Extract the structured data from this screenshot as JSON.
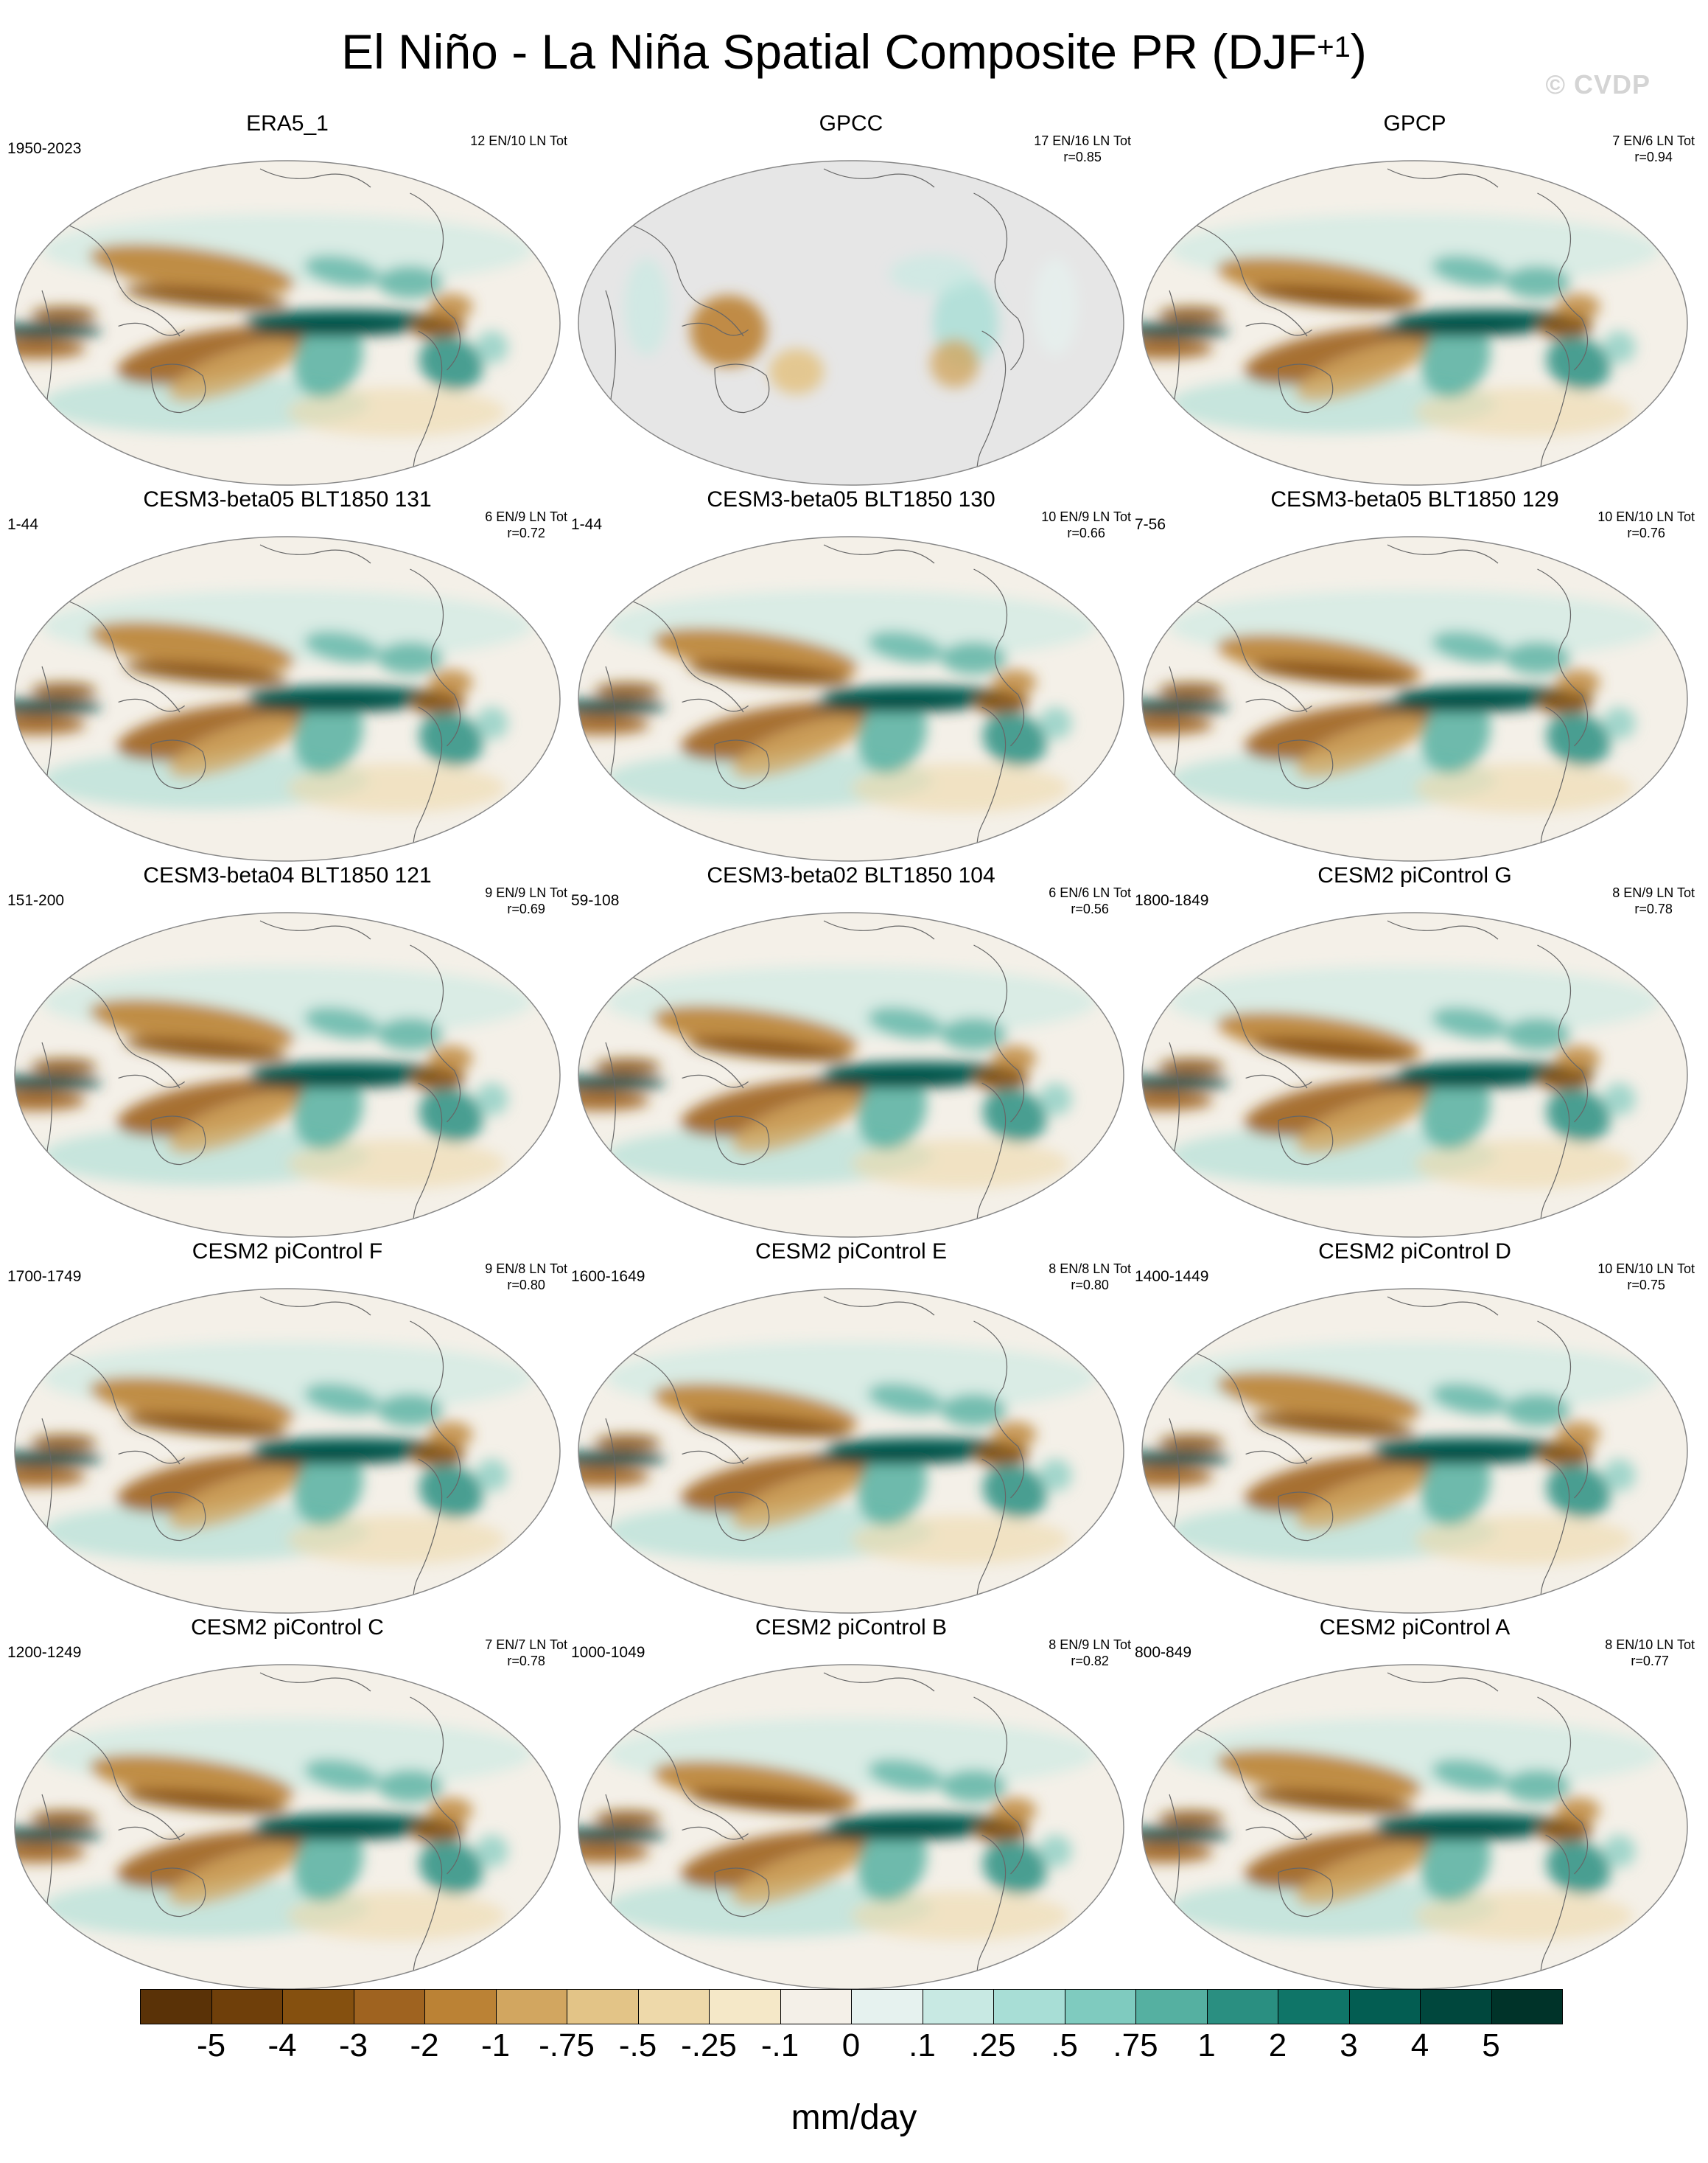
{
  "title_main": "El Niño - La Niña Spatial Composite PR (DJF",
  "title_sup": "+1",
  "title_end": ")",
  "copyright": "© CVDP",
  "chart_data": {
    "type": "heatmap",
    "variable": "PR",
    "season": "DJF+1",
    "units": "mm/day",
    "panels": [
      {
        "name": "ERA5_1",
        "years": "1950-2023",
        "events": "12 EN/10 LN Tot",
        "r": "",
        "reference": true,
        "land_only": false,
        "pattern": "obs"
      },
      {
        "name": "GPCC",
        "years": "",
        "events": "17 EN/16 LN Tot",
        "r": "r=0.85",
        "land_only": true,
        "pattern": "land"
      },
      {
        "name": "GPCP",
        "years": "",
        "events": "7 EN/6 LN Tot",
        "r": "r=0.94",
        "land_only": false,
        "pattern": "obs"
      },
      {
        "name": "CESM3-beta05 BLT1850 131",
        "years": "1-44",
        "events": "6 EN/9 LN Tot",
        "r": "r=0.72",
        "land_only": false,
        "pattern": "model"
      },
      {
        "name": "CESM3-beta05 BLT1850 130",
        "years": "1-44",
        "events": "10 EN/9 LN Tot",
        "r": "r=0.66",
        "land_only": false,
        "pattern": "model"
      },
      {
        "name": "CESM3-beta05 BLT1850 129",
        "years": "7-56",
        "events": "10 EN/10 LN Tot",
        "r": "r=0.76",
        "land_only": false,
        "pattern": "model"
      },
      {
        "name": "CESM3-beta04 BLT1850 121",
        "years": "151-200",
        "events": "9 EN/9 LN Tot",
        "r": "r=0.69",
        "land_only": false,
        "pattern": "model"
      },
      {
        "name": "CESM3-beta02 BLT1850 104",
        "years": "59-108",
        "events": "6 EN/6 LN Tot",
        "r": "r=0.56",
        "land_only": false,
        "pattern": "model"
      },
      {
        "name": "CESM2 piControl G",
        "years": "1800-1849",
        "events": "8 EN/9 LN Tot",
        "r": "r=0.78",
        "land_only": false,
        "pattern": "model"
      },
      {
        "name": "CESM2 piControl F",
        "years": "1700-1749",
        "events": "9 EN/8 LN Tot",
        "r": "r=0.80",
        "land_only": false,
        "pattern": "model"
      },
      {
        "name": "CESM2 piControl E",
        "years": "1600-1649",
        "events": "8 EN/8 LN Tot",
        "r": "r=0.80",
        "land_only": false,
        "pattern": "model"
      },
      {
        "name": "CESM2 piControl D",
        "years": "1400-1449",
        "events": "10 EN/10 LN Tot",
        "r": "r=0.75",
        "land_only": false,
        "pattern": "model"
      },
      {
        "name": "CESM2 piControl C",
        "years": "1200-1249",
        "events": "7 EN/7 LN Tot",
        "r": "r=0.78",
        "land_only": false,
        "pattern": "model"
      },
      {
        "name": "CESM2 piControl B",
        "years": "1000-1049",
        "events": "8 EN/9 LN Tot",
        "r": "r=0.82",
        "land_only": false,
        "pattern": "model"
      },
      {
        "name": "CESM2 piControl A",
        "years": "800-849",
        "events": "8 EN/10 LN Tot",
        "r": "r=0.77",
        "land_only": false,
        "pattern": "model"
      }
    ],
    "colorbar": {
      "labels": [
        "-5",
        "-4",
        "-3",
        "-2",
        "-1",
        "-.75",
        "-.5",
        "-.25",
        "-.1",
        "0",
        ".1",
        ".25",
        ".5",
        ".75",
        "1",
        "2",
        "3",
        "4",
        "5"
      ],
      "colors": [
        "#5a3207",
        "#6f3f0a",
        "#85500f",
        "#9f6320",
        "#bb8235",
        "#d2a660",
        "#e3c487",
        "#eed9aa",
        "#f5e8c8",
        "#f4f0e8",
        "#e6f2ef",
        "#c8e9e3",
        "#a8ded6",
        "#7fcbbf",
        "#55b0a1",
        "#2a8f81",
        "#0f7568",
        "#035d52",
        "#00473d",
        "#003329"
      ]
    }
  }
}
